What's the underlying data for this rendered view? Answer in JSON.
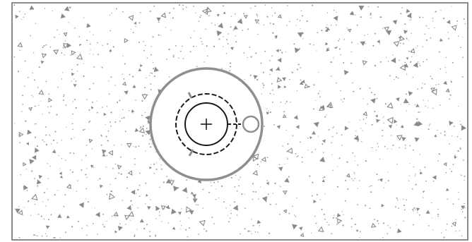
{
  "scene": {
    "colors": {
      "background": "#ffffff",
      "frame": "#8a8a8a",
      "dots": "#9a9a9a",
      "debris": "#8a8a8a",
      "ring": "#8f8f8f",
      "inner": "#1a1a1a",
      "knob": "#8f8f8f"
    },
    "icons": {
      "center": "crosshair-plus-icon",
      "knob": "circle-handle-icon"
    }
  }
}
